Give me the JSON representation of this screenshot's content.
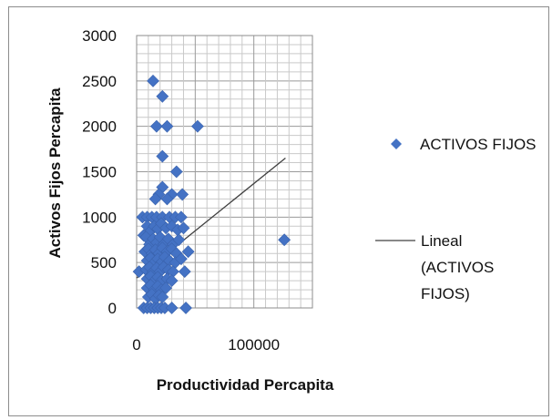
{
  "chart_data": {
    "type": "scatter",
    "title": "",
    "xlabel": "Productividad Percapita",
    "ylabel": "Activos Fijos Percapita",
    "xlim": [
      0,
      150000
    ],
    "ylim": [
      0,
      3000
    ],
    "x_ticks": [
      0,
      100000
    ],
    "x_tick_labels": [
      "0",
      "100000"
    ],
    "y_ticks": [
      0,
      500,
      1000,
      1500,
      2000,
      2500,
      3000
    ],
    "y_tick_labels": [
      "0",
      "500",
      "1000",
      "1500",
      "2000",
      "2500",
      "3000"
    ],
    "grid": true,
    "legend_position": "right",
    "colors": {
      "marker": "#4472c4",
      "trendline": "#404040"
    },
    "series": [
      {
        "name": "ACTIVOS FIJOS",
        "marker": "diamond",
        "points": [
          [
            14000,
            2500
          ],
          [
            22000,
            2330
          ],
          [
            17000,
            2000
          ],
          [
            26000,
            2000
          ],
          [
            52000,
            2000
          ],
          [
            22000,
            1670
          ],
          [
            34000,
            1500
          ],
          [
            22000,
            1330
          ],
          [
            19000,
            1250
          ],
          [
            30000,
            1250
          ],
          [
            39000,
            1250
          ],
          [
            16000,
            1200
          ],
          [
            26000,
            1200
          ],
          [
            5000,
            1000
          ],
          [
            9000,
            1000
          ],
          [
            13000,
            1000
          ],
          [
            17000,
            1000
          ],
          [
            22000,
            1000
          ],
          [
            28000,
            1000
          ],
          [
            33000,
            1000
          ],
          [
            38000,
            1000
          ],
          [
            6000,
            800
          ],
          [
            9000,
            900
          ],
          [
            12000,
            850
          ],
          [
            15000,
            900
          ],
          [
            18000,
            870
          ],
          [
            21000,
            930
          ],
          [
            25000,
            880
          ],
          [
            30000,
            900
          ],
          [
            35000,
            860
          ],
          [
            40000,
            880
          ],
          [
            8000,
            780
          ],
          [
            11000,
            700
          ],
          [
            14000,
            760
          ],
          [
            17000,
            720
          ],
          [
            20000,
            780
          ],
          [
            23000,
            700
          ],
          [
            27000,
            760
          ],
          [
            31000,
            700
          ],
          [
            36000,
            750
          ],
          [
            7000,
            620
          ],
          [
            10000,
            650
          ],
          [
            13000,
            600
          ],
          [
            16000,
            640
          ],
          [
            19000,
            600
          ],
          [
            22000,
            660
          ],
          [
            26000,
            620
          ],
          [
            30000,
            650
          ],
          [
            34000,
            600
          ],
          [
            44000,
            620
          ],
          [
            9000,
            520
          ],
          [
            12000,
            550
          ],
          [
            15000,
            500
          ],
          [
            18000,
            540
          ],
          [
            21000,
            500
          ],
          [
            24000,
            560
          ],
          [
            28000,
            520
          ],
          [
            33000,
            500
          ],
          [
            38000,
            540
          ],
          [
            2000,
            400
          ],
          [
            8000,
            420
          ],
          [
            11000,
            450
          ],
          [
            14000,
            400
          ],
          [
            17000,
            440
          ],
          [
            20000,
            400
          ],
          [
            23000,
            450
          ],
          [
            27000,
            420
          ],
          [
            31000,
            400
          ],
          [
            41000,
            400
          ],
          [
            9000,
            320
          ],
          [
            12000,
            350
          ],
          [
            15000,
            300
          ],
          [
            18000,
            340
          ],
          [
            21000,
            300
          ],
          [
            26000,
            320
          ],
          [
            30000,
            300
          ],
          [
            9000,
            220
          ],
          [
            12000,
            250
          ],
          [
            15000,
            200
          ],
          [
            18000,
            240
          ],
          [
            21000,
            200
          ],
          [
            25000,
            220
          ],
          [
            10000,
            120
          ],
          [
            13000,
            150
          ],
          [
            16000,
            100
          ],
          [
            19000,
            140
          ],
          [
            22000,
            120
          ],
          [
            6000,
            0
          ],
          [
            9000,
            0
          ],
          [
            12000,
            0
          ],
          [
            15000,
            0
          ],
          [
            18000,
            0
          ],
          [
            21000,
            0
          ],
          [
            24000,
            0
          ],
          [
            30000,
            0
          ],
          [
            42000,
            0
          ],
          [
            126000,
            750
          ]
        ]
      }
    ],
    "trendline": {
      "name": "Lineal (ACTIVOS FIJOS)",
      "label_lines": [
        "Lineal",
        "(ACTIVOS",
        "FIJOS)"
      ],
      "type": "linear",
      "x": [
        0,
        127000
      ],
      "y": [
        330,
        1650
      ]
    }
  }
}
